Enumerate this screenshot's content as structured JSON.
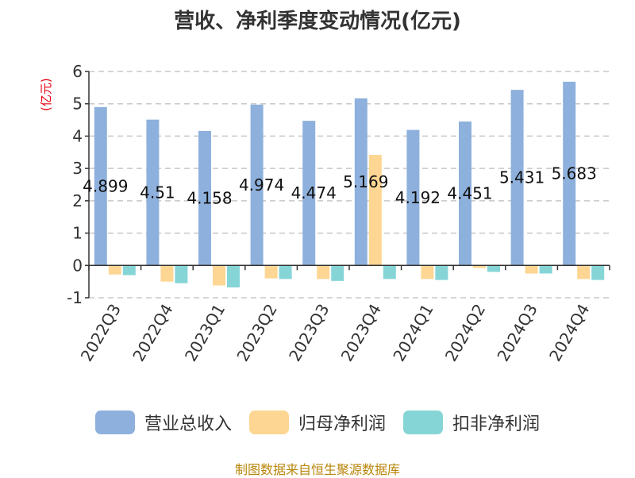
{
  "header": {
    "title": "营收、净利季度变动情况(亿元)"
  },
  "footer": {
    "source": "制图数据来自恒生聚源数据库"
  },
  "chart_data": {
    "type": "bar",
    "title": "营收、净利季度变动情况(亿元)",
    "ylabel": "(亿元)",
    "xlabel": "",
    "ylim": [
      -1,
      6
    ],
    "yticks": [
      -1,
      0,
      1,
      2,
      3,
      4,
      5,
      6
    ],
    "grid": true,
    "legend_position": "bottom",
    "categories": [
      "2022Q3",
      "2022Q4",
      "2023Q1",
      "2023Q2",
      "2023Q3",
      "2023Q4",
      "2024Q1",
      "2024Q2",
      "2024Q3",
      "2024Q4"
    ],
    "series": [
      {
        "name": "营业总收入",
        "color": "#8eb0dc",
        "values": [
          4.899,
          4.51,
          4.158,
          4.974,
          4.474,
          5.169,
          4.192,
          4.451,
          5.431,
          5.683
        ],
        "labels": [
          "4.899",
          "4.51",
          "4.158",
          "4.974",
          "4.474",
          "5.169",
          "4.192",
          "4.451",
          "5.431",
          "5.683"
        ]
      },
      {
        "name": "归母净利润",
        "color": "#fdd693",
        "values": [
          -0.28,
          -0.5,
          -0.62,
          -0.4,
          -0.42,
          3.42,
          -0.42,
          -0.08,
          -0.25,
          -0.42
        ]
      },
      {
        "name": "扣非净利润",
        "color": "#86d5d6",
        "values": [
          -0.3,
          -0.55,
          -0.68,
          -0.42,
          -0.48,
          -0.42,
          -0.45,
          -0.2,
          -0.25,
          -0.45
        ]
      }
    ]
  }
}
